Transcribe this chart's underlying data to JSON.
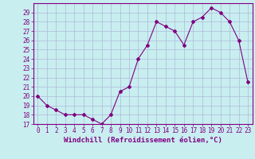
{
  "x": [
    0,
    1,
    2,
    3,
    4,
    5,
    6,
    7,
    8,
    9,
    10,
    11,
    12,
    13,
    14,
    15,
    16,
    17,
    18,
    19,
    20,
    21,
    22,
    23
  ],
  "y": [
    20,
    19,
    18.5,
    18,
    18,
    18,
    17.5,
    17,
    18,
    20.5,
    21,
    24,
    25.5,
    28,
    27.5,
    27,
    25.5,
    28,
    28.5,
    29.5,
    29,
    28,
    26,
    21.5
  ],
  "line_color": "#800080",
  "marker": "D",
  "marker_size": 2,
  "bg_color": "#c8eef0",
  "grid_color": "#b0b8d8",
  "xlabel": "Windchill (Refroidissement éolien,°C)",
  "xlabel_color": "#800080",
  "xlabel_fontsize": 6.5,
  "tick_color": "#800080",
  "tick_fontsize": 5.5,
  "ylim": [
    17,
    30
  ],
  "xlim": [
    -0.5,
    23.5
  ],
  "yticks": [
    17,
    18,
    19,
    20,
    21,
    22,
    23,
    24,
    25,
    26,
    27,
    28,
    29
  ],
  "xticks": [
    0,
    1,
    2,
    3,
    4,
    5,
    6,
    7,
    8,
    9,
    10,
    11,
    12,
    13,
    14,
    15,
    16,
    17,
    18,
    19,
    20,
    21,
    22,
    23
  ]
}
